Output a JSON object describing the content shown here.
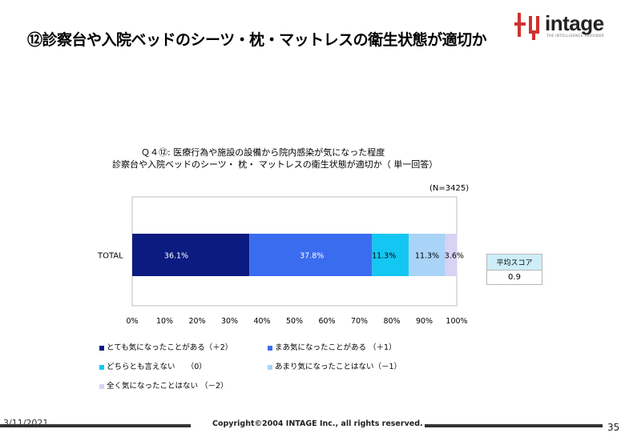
{
  "slide": {
    "title": "⑫診察台や入院ベッドのシーツ・枕・マットレスの衛生状態が適切か",
    "logo_text": "intage",
    "logo_subtext": "THE INTELLIGENCE PROVIDER",
    "date": "3/11/2021",
    "copyright": "Copyright©2004 INTAGE Inc., all rights reserved.",
    "page_number": "35"
  },
  "score_box": {
    "header": "平均スコア",
    "value": "0.9"
  },
  "chart_data": {
    "type": "bar",
    "orientation": "horizontal",
    "stacked": true,
    "percent": true,
    "title_line1": "Ｑ４⑫:  医療行為や施設の設備から院内感染が気になった程度",
    "title_line2": "診察台や入院ベッドのシーツ・ 枕・ マットレスの衛生状態が適切か（ 単一回答）",
    "n_label": "(N=3425)",
    "categories": [
      "TOTAL"
    ],
    "series": [
      {
        "name": "とても気になったことがある（＋2）",
        "values": [
          36.1
        ],
        "label": "36.1%",
        "color": "#0b1b80"
      },
      {
        "name": "まあ気になったことがある （＋1）",
        "values": [
          37.8
        ],
        "label": "37.8%",
        "color": "#3a6cf0"
      },
      {
        "name": "どちらとも言えない　　（0）",
        "values": [
          11.3
        ],
        "label": "11.3%",
        "color": "#14c7f2"
      },
      {
        "name": "あまり気になったことはない（－1）",
        "values": [
          11.3
        ],
        "label": "11.3%",
        "color": "#a9d3f7"
      },
      {
        "name": "全く気になったことはない （－2）",
        "values": [
          3.6
        ],
        "label": "3.6%",
        "color": "#d6d3f3"
      }
    ],
    "xlim": [
      0,
      100
    ],
    "xticks": [
      "0%",
      "10%",
      "20%",
      "30%",
      "40%",
      "50%",
      "60%",
      "70%",
      "80%",
      "90%",
      "100%"
    ],
    "grid": false
  }
}
